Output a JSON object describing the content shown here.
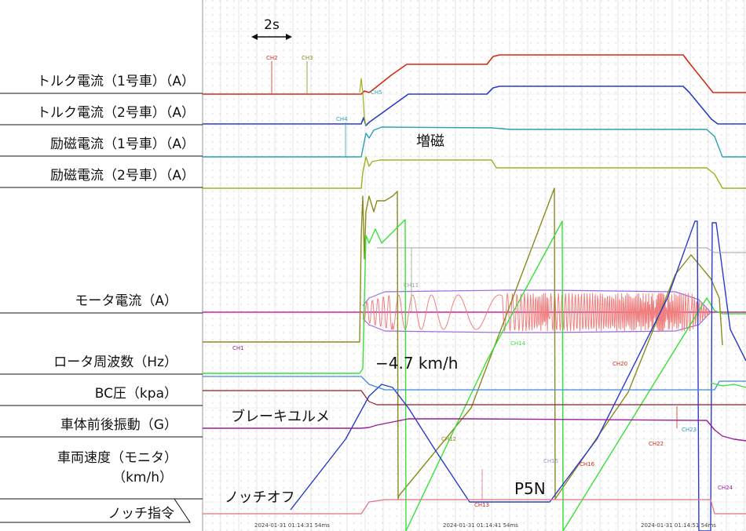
{
  "labels": {
    "scale": "2s",
    "torque1": "トルク電流（1号車）（A）",
    "torque2": "トルク電流（2号車）（A）",
    "field1": "励磁電流（1号車）（A）",
    "field2": "励磁電流（2号車）（A）",
    "motor": "モータ電流（A）",
    "rotor": "ロータ周波数（Hz）",
    "bc": "BC圧（kpa）",
    "accel": "車体前後振動（G）",
    "speed_line1": "車両速度（モニタ）",
    "speed_line2": "（km/h）",
    "notch": "ノッチ指令"
  },
  "annotations": {
    "zoshi": "増磁",
    "minus_speed": "−4.7 km/h",
    "brake_release": "ブレーキユルメ",
    "notch_off": "ノッチオフ",
    "p5n": "P5N"
  },
  "channels": {
    "ch1": "CH1",
    "ch2": "CH2",
    "ch3": "CH3",
    "ch4": "CH4",
    "ch5": "CH5",
    "ch11": "CH11",
    "ch12": "CH12",
    "ch13": "CH13",
    "ch14": "CH14",
    "ch15": "CH15",
    "ch16": "CH16",
    "ch20": "CH20",
    "ch22": "CH22",
    "ch23": "CH23",
    "ch24": "CH24"
  },
  "timestamps": {
    "t1": "2024-01-31 01:14:31 54ms",
    "t2": "2024-01-31 01:14:41 54ms",
    "t3": "2024-01-31 01:14:51 54ms"
  },
  "colors": {
    "red": "#d42a14",
    "blue": "#2a3cc8",
    "cyan": "#2aa0b4",
    "olive": "#8a8a1e",
    "ygreen": "#9ab41e",
    "green": "#38e038",
    "purple": "#9a1e9a",
    "magenta": "#c8289a",
    "pink": "#f08080",
    "brown": "#8a1e2a",
    "bcblue": "#3c8ce0",
    "grid": "#d0d0d0"
  }
}
